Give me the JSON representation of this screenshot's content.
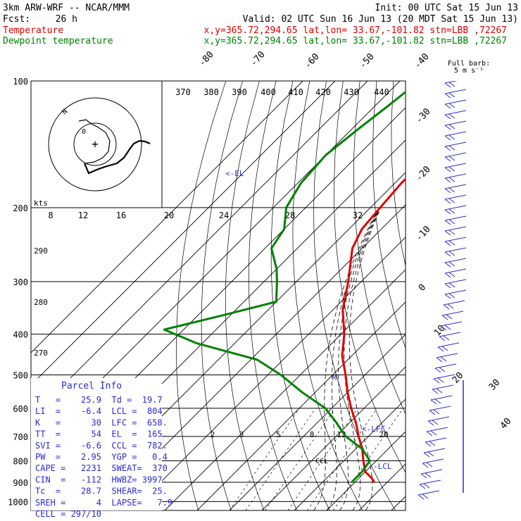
{
  "header": {
    "model": "3km ARW-WRF -- NCAR/MMM",
    "init": "Init: 00 UTC Sat 15 Jun 13",
    "fcst_label": "Fcst:",
    "fcst_value": "26 h",
    "valid": "Valid: 02 UTC Sun 16 Jun 13 (20 MDT Sat 15 Jun 13)"
  },
  "legend": [
    {
      "name": "Temperature",
      "info": "x,y=365.72,294.65   lat,lon= 33.67,-101.82  stn=LBB ,72267",
      "color": "#e00000"
    },
    {
      "name": "Dewpoint temperature",
      "info": "x,y=365.72,294.65   lat,lon= 33.67,-101.82  stn=LBB ,72267",
      "color": "#008000"
    }
  ],
  "barb_legend": {
    "line1": "Full barb:",
    "line2": "5 m s⁻¹"
  },
  "parcel_info": {
    "title": "Parcel Info",
    "rows": [
      "T   =    25.9  Td =  19.7",
      "LI  =    -6.4  LCL =  804.",
      "K   =      30  LFC =  658.",
      "TT  =      54  EL  =  165.",
      "SVI =    -6.6  CCL =  782.",
      "PW  =    2.95  YGP =   0.4",
      "CAPE =   2231  SWEAT=  370",
      "CIN  =   -112  HWBZ= 3997.",
      "Tc  =    28.7  SHEAR=  25.",
      "SREH =      4  LAPSE=   7.9",
      "CELL = 297/10"
    ]
  },
  "annotations": {
    "el": "<-EL",
    "lfc": "<-LFC",
    "lcl": "-LCL",
    "ccl": "CCL",
    "m": "M"
  },
  "hodograph": {
    "units": "kts",
    "ring_label": "N",
    "center": "+"
  },
  "chart_data": {
    "type": "skew-T log-P",
    "pressure_levels": [
      "100",
      "200",
      "300",
      "400",
      "500",
      "600",
      "700",
      "800",
      "900",
      "1000"
    ],
    "skewed_isotherm_labels": [
      "-80",
      "-70",
      "-60",
      "-50",
      "-40",
      "-30",
      "-20",
      "-10",
      "0",
      "10",
      "20",
      "30",
      "40"
    ],
    "theta_labels": [
      "370",
      "380",
      "390",
      "400",
      "410",
      "420",
      "430",
      "440"
    ],
    "theta_left_labels": [
      "290",
      "280",
      "270"
    ],
    "mixing_ratio_labels": [
      "2",
      "3",
      "5",
      "8",
      "12",
      "20"
    ],
    "hodo_speed_labels": [
      "8",
      "12",
      "16",
      "20",
      "24",
      "28",
      "32"
    ],
    "series": [
      {
        "name": "Temperature",
        "color": "#e00000",
        "points": [
          [
            100,
            -66
          ],
          [
            115,
            -62
          ],
          [
            130,
            -60
          ],
          [
            150,
            -58
          ],
          [
            175,
            -58
          ],
          [
            200,
            -57
          ],
          [
            225,
            -56
          ],
          [
            250,
            -53
          ],
          [
            300,
            -44
          ],
          [
            350,
            -37
          ],
          [
            400,
            -29
          ],
          [
            450,
            -23
          ],
          [
            500,
            -16
          ],
          [
            550,
            -10
          ],
          [
            600,
            -4
          ],
          [
            650,
            2
          ],
          [
            700,
            7
          ],
          [
            750,
            12
          ],
          [
            800,
            16
          ],
          [
            850,
            20
          ],
          [
            880,
            24
          ],
          [
            900,
            26
          ]
        ]
      },
      {
        "name": "Dewpoint temperature",
        "color": "#008000",
        "points": [
          [
            100,
            -84
          ],
          [
            115,
            -86
          ],
          [
            130,
            -88
          ],
          [
            150,
            -90
          ],
          [
            175,
            -89
          ],
          [
            200,
            -86
          ],
          [
            225,
            -80
          ],
          [
            250,
            -78
          ],
          [
            280,
            -70
          ],
          [
            300,
            -66
          ],
          [
            335,
            -60
          ],
          [
            360,
            -72
          ],
          [
            390,
            -86
          ],
          [
            420,
            -72
          ],
          [
            460,
            -48
          ],
          [
            500,
            -36
          ],
          [
            550,
            -24
          ],
          [
            600,
            -12
          ],
          [
            650,
            -4
          ],
          [
            700,
            3
          ],
          [
            750,
            12
          ],
          [
            800,
            18
          ],
          [
            850,
            19
          ],
          [
            900,
            19
          ]
        ]
      }
    ]
  }
}
